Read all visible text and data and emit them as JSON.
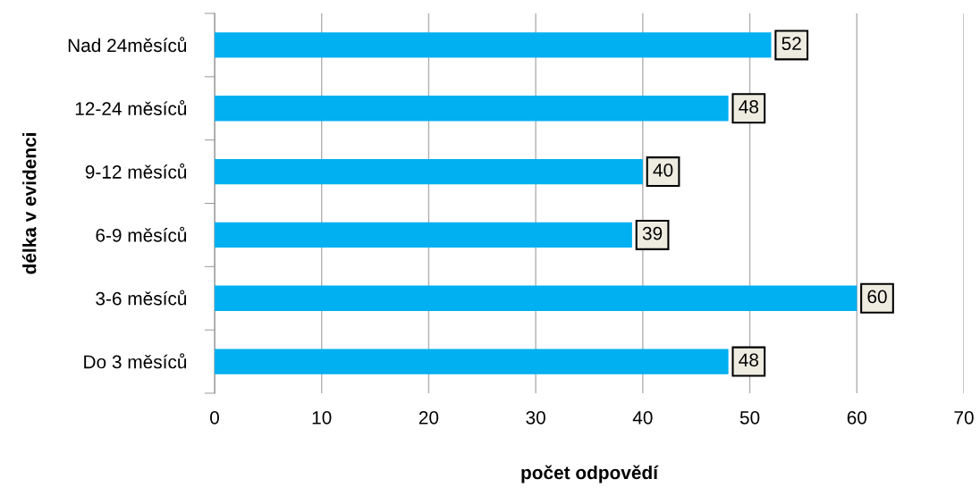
{
  "chart_data": {
    "type": "bar",
    "orientation": "horizontal",
    "xlabel": "počet odpovědí",
    "ylabel": "délka v evidenci",
    "categories": [
      "Nad 24měsíců",
      "12-24 měsíců",
      "9-12 měsíců",
      "6-9 měsíců",
      "3-6 měsíců",
      "Do 3 měsíců"
    ],
    "values": [
      52,
      48,
      40,
      39,
      60,
      48
    ],
    "color": "#00b0f0",
    "xlim": [
      0,
      70
    ],
    "xticks": [
      0,
      10,
      20,
      30,
      40,
      50,
      60,
      70
    ],
    "grid": "x",
    "data_labels": true,
    "legend": false
  }
}
